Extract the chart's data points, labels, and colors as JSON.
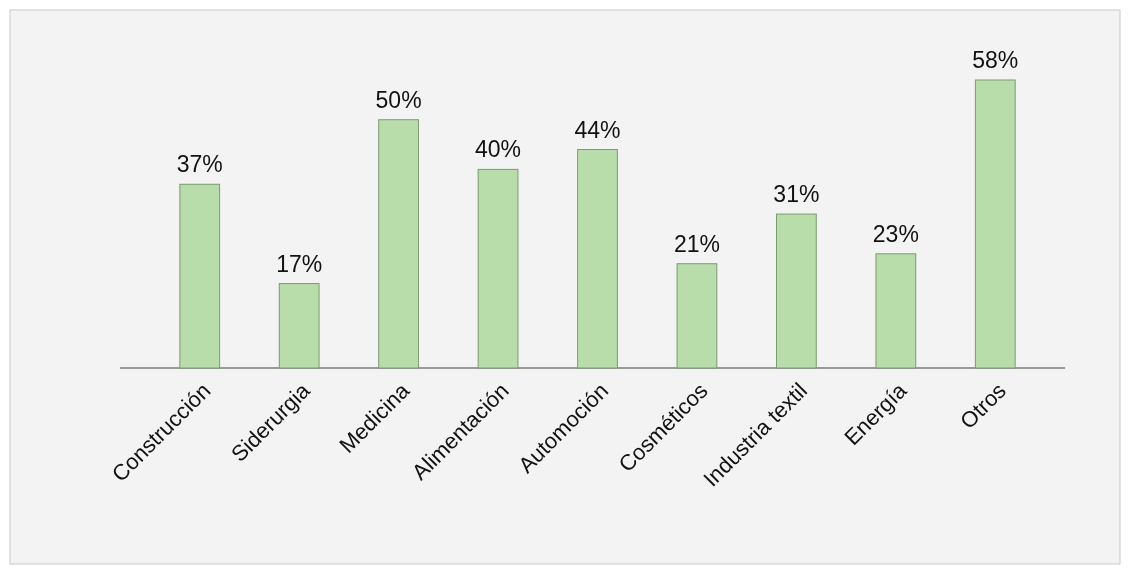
{
  "chart_data": {
    "type": "bar",
    "categories": [
      "Construcción",
      "Siderurgia",
      "Medicina",
      "Alimentación",
      "Automoción",
      "Cosméticos",
      "Industria textil",
      "Energía",
      "Otros"
    ],
    "values": [
      37,
      17,
      50,
      40,
      44,
      21,
      31,
      23,
      58
    ],
    "value_labels": [
      "37%",
      "17%",
      "50%",
      "40%",
      "44%",
      "21%",
      "31%",
      "23%",
      "58%"
    ],
    "color": "#b8dcaa"
  }
}
